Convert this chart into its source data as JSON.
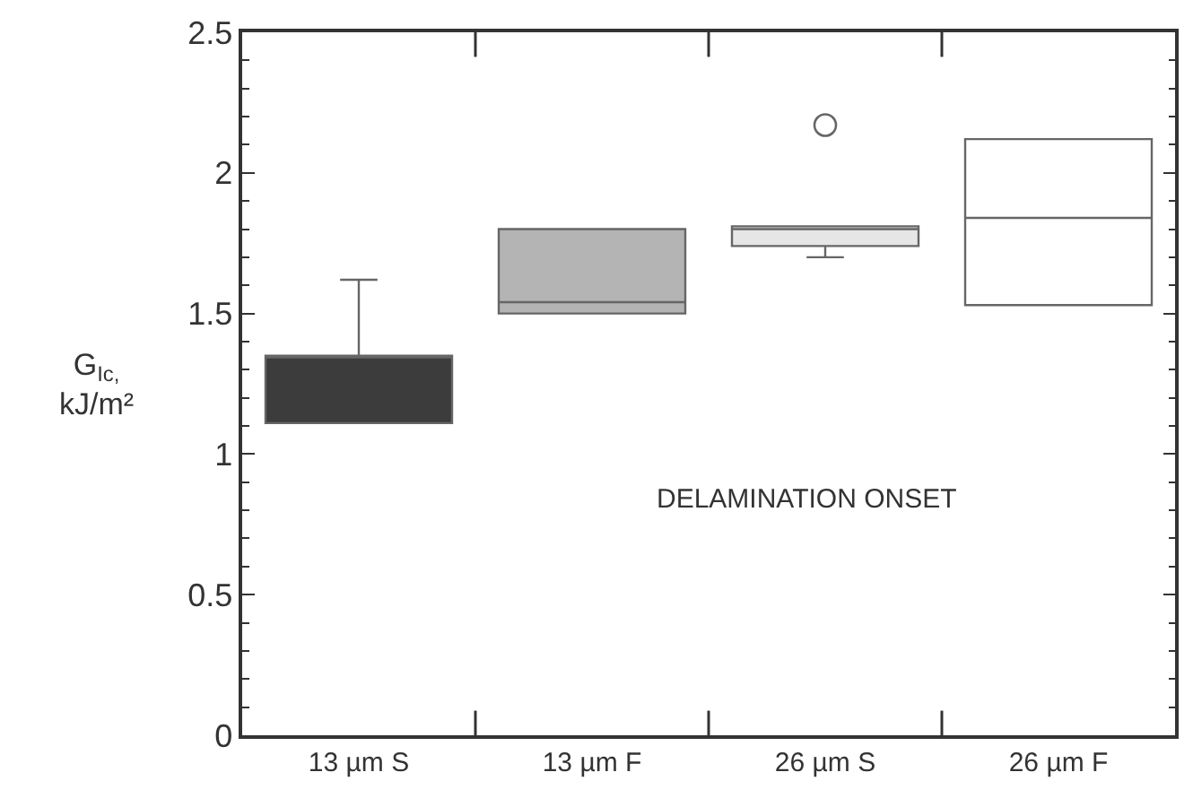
{
  "chart_data": {
    "type": "box",
    "ylabel": "G$_{Ic,}$\nkJ/m²",
    "categories": [
      "13 µm S",
      "13 µm F",
      "26 µm S",
      "26 µm F"
    ],
    "boxes": [
      {
        "low": 1.11,
        "q1": 1.11,
        "median": 1.35,
        "q3": 1.35,
        "high": 1.62
      },
      {
        "low": 1.5,
        "q1": 1.5,
        "median": 1.54,
        "q3": 1.8,
        "high": 1.8
      },
      {
        "low": 1.7,
        "q1": 1.74,
        "median": 1.8,
        "q3": 1.81,
        "high": 1.81,
        "outliers": [
          2.17
        ]
      },
      {
        "low": 1.53,
        "q1": 1.53,
        "median": 1.84,
        "q3": 2.12,
        "high": 2.12
      }
    ],
    "colors": [
      "#3c3c3c",
      "#b4b4b4",
      "#e6e6e6",
      "#ffffff"
    ],
    "ylim": [
      0,
      2.5
    ],
    "yticks": [
      0,
      0.5,
      1,
      1.5,
      2,
      2.5
    ],
    "annotations": [
      "DELAMINATION ONSET"
    ]
  }
}
